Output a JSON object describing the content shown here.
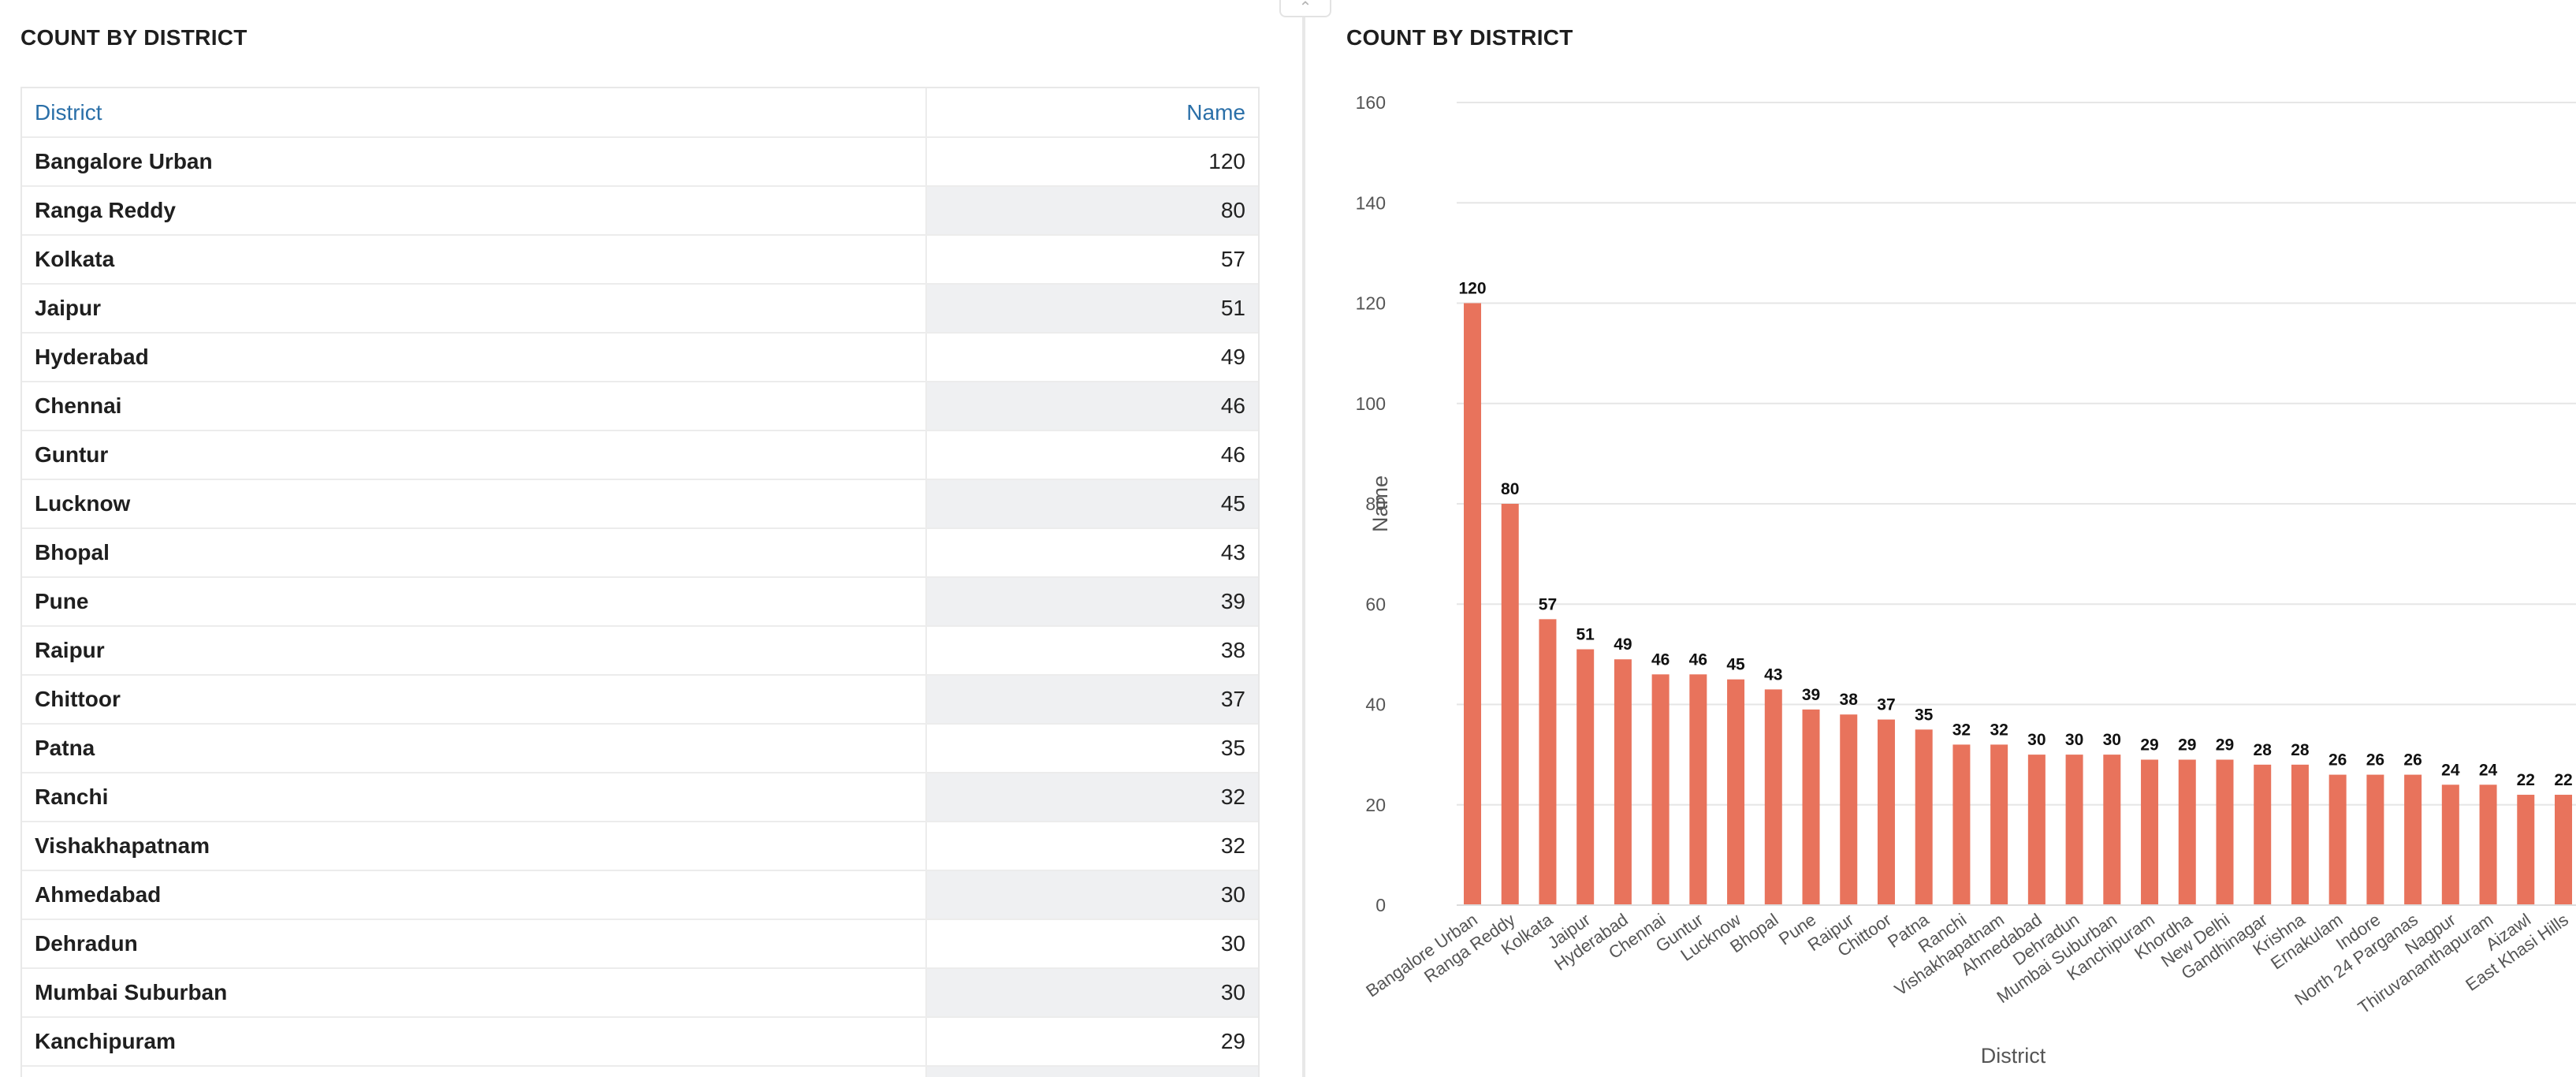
{
  "left_panel": {
    "title": "COUNT BY DISTRICT",
    "columns": [
      "District",
      "Name"
    ],
    "rows": [
      [
        "Bangalore Urban",
        "120"
      ],
      [
        "Ranga Reddy",
        "80"
      ],
      [
        "Kolkata",
        "57"
      ],
      [
        "Jaipur",
        "51"
      ],
      [
        "Hyderabad",
        "49"
      ],
      [
        "Chennai",
        "46"
      ],
      [
        "Guntur",
        "46"
      ],
      [
        "Lucknow",
        "45"
      ],
      [
        "Bhopal",
        "43"
      ],
      [
        "Pune",
        "39"
      ],
      [
        "Raipur",
        "38"
      ],
      [
        "Chittoor",
        "37"
      ],
      [
        "Patna",
        "35"
      ],
      [
        "Ranchi",
        "32"
      ],
      [
        "Vishakhapatnam",
        "32"
      ],
      [
        "Ahmedabad",
        "30"
      ],
      [
        "Dehradun",
        "30"
      ],
      [
        "Mumbai Suburban",
        "30"
      ],
      [
        "Kanchipuram",
        "29"
      ],
      [
        "",
        ""
      ]
    ]
  },
  "right_panel": {
    "title": "COUNT BY DISTRICT"
  },
  "chart_data": {
    "type": "bar",
    "title": "COUNT BY DISTRICT",
    "xlabel": "District",
    "ylabel": "Name",
    "ylim": [
      0,
      160
    ],
    "yticks": [
      0,
      20,
      40,
      60,
      80,
      100,
      120,
      140,
      160
    ],
    "grid": true,
    "bar_color": "#e8735c",
    "categories": [
      "Bangalore Urban",
      "Ranga Reddy",
      "Kolkata",
      "Jaipur",
      "Hyderabad",
      "Chennai",
      "Guntur",
      "Lucknow",
      "Bhopal",
      "Pune",
      "Raipur",
      "Chittoor",
      "Patna",
      "Ranchi",
      "Vishakhapatnam",
      "Ahmedabad",
      "Dehradun",
      "Mumbai Suburban",
      "Kanchipuram",
      "Khordha",
      "New Delhi",
      "Gandhinagar",
      "Krishna",
      "Ernakulam",
      "Indore",
      "North 24 Parganas",
      "Nagpur",
      "Thiruvananthapuram",
      "Aizawl",
      "East Khasi Hills"
    ],
    "values": [
      120,
      80,
      57,
      51,
      49,
      46,
      46,
      45,
      43,
      39,
      38,
      37,
      35,
      32,
      32,
      30,
      30,
      30,
      29,
      29,
      29,
      28,
      28,
      26,
      26,
      26,
      24,
      24,
      22,
      22
    ]
  }
}
